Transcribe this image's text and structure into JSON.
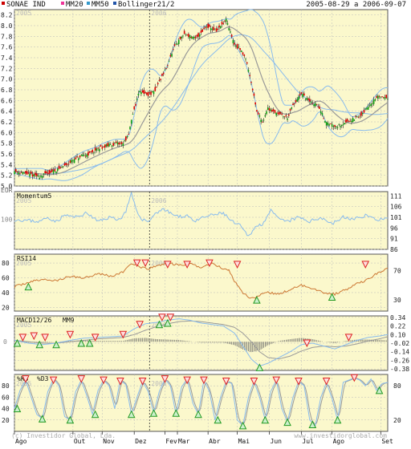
{
  "header": {
    "legend": [
      {
        "label": "SONAE IND",
        "color": "#cc0000"
      },
      {
        "label": "MM20",
        "color": "#ee3399"
      },
      {
        "label": "MM50",
        "color": "#3399cc"
      },
      {
        "label": "Bollinger21/2",
        "color": "#2255aa"
      }
    ],
    "date_range": "2005-08-29 a 2006-09-07"
  },
  "footer": {
    "copyright": "(c) Investidor Global, Lda.",
    "watermark": "www.investidorglobal.com"
  },
  "colors": {
    "panel_bg": "#fbf8cc",
    "grid": "#bbbbbb",
    "candle_up": "#10a010",
    "candle_down": "#dd0000",
    "ma_gray": "#999999",
    "ma_blue": "#88bbee",
    "rsi_line": "#cc7733",
    "buy_marker": "#229922",
    "sell_marker": "#dd2222",
    "cursor": "#333333"
  },
  "chart_data": [
    {
      "type": "candlestick",
      "title": "SONAE IND",
      "series_labels": [
        "SONAE IND",
        "MM20",
        "MM50",
        "Bollinger21/2"
      ],
      "ylim": [
        5.0,
        8.3
      ],
      "y_ticks": [
        "5.0",
        "5.2",
        "5.4",
        "5.6",
        "5.8",
        "6.0",
        "6.2",
        "6.4",
        "6.6",
        "6.8",
        "7.0",
        "7.2",
        "7.4",
        "7.6",
        "7.8",
        "8.0",
        "8.2"
      ],
      "y_axis_label": "EUR",
      "year_marks": [
        "2005",
        "2006"
      ],
      "close_anchors": [
        [
          0,
          5.28
        ],
        [
          10,
          5.22
        ],
        [
          18,
          5.18
        ],
        [
          25,
          5.25
        ],
        [
          32,
          5.32
        ],
        [
          40,
          5.45
        ],
        [
          48,
          5.55
        ],
        [
          55,
          5.62
        ],
        [
          62,
          5.72
        ],
        [
          70,
          5.78
        ],
        [
          78,
          5.8
        ],
        [
          82,
          5.95
        ],
        [
          85,
          6.35
        ],
        [
          90,
          6.8
        ],
        [
          95,
          6.7
        ],
        [
          100,
          6.75
        ],
        [
          108,
          7.15
        ],
        [
          115,
          7.6
        ],
        [
          122,
          7.85
        ],
        [
          130,
          7.75
        ],
        [
          138,
          8.0
        ],
        [
          145,
          7.9
        ],
        [
          152,
          8.1
        ],
        [
          158,
          7.65
        ],
        [
          162,
          7.55
        ],
        [
          166,
          7.4
        ],
        [
          170,
          6.95
        ],
        [
          174,
          6.4
        ],
        [
          178,
          6.2
        ],
        [
          182,
          6.45
        ],
        [
          190,
          6.35
        ],
        [
          196,
          6.28
        ],
        [
          200,
          6.5
        ],
        [
          206,
          6.72
        ],
        [
          212,
          6.58
        ],
        [
          218,
          6.5
        ],
        [
          224,
          6.18
        ],
        [
          232,
          6.12
        ],
        [
          240,
          6.22
        ],
        [
          248,
          6.3
        ],
        [
          256,
          6.55
        ],
        [
          262,
          6.68
        ],
        [
          268,
          6.65
        ]
      ]
    },
    {
      "type": "line",
      "title": "Momentum5",
      "ylim": [
        86,
        113
      ],
      "y_ticks": [
        "111",
        "106",
        "101",
        "96",
        "91",
        "86"
      ],
      "left_label": "100",
      "anchors": [
        [
          0,
          100
        ],
        [
          10,
          99.5
        ],
        [
          18,
          99
        ],
        [
          24,
          101
        ],
        [
          30,
          99
        ],
        [
          36,
          102
        ],
        [
          44,
          101
        ],
        [
          52,
          103
        ],
        [
          60,
          99
        ],
        [
          68,
          101
        ],
        [
          76,
          100
        ],
        [
          80,
          104
        ],
        [
          84,
          112
        ],
        [
          88,
          103
        ],
        [
          92,
          100
        ],
        [
          96,
          99
        ],
        [
          100,
          102
        ],
        [
          106,
          105
        ],
        [
          112,
          103
        ],
        [
          118,
          101
        ],
        [
          124,
          102
        ],
        [
          130,
          99
        ],
        [
          136,
          101
        ],
        [
          142,
          102
        ],
        [
          150,
          103
        ],
        [
          156,
          99
        ],
        [
          162,
          97
        ],
        [
          168,
          92
        ],
        [
          172,
          96
        ],
        [
          178,
          98
        ],
        [
          184,
          104
        ],
        [
          190,
          100
        ],
        [
          196,
          99
        ],
        [
          204,
          101
        ],
        [
          212,
          99
        ],
        [
          220,
          101
        ],
        [
          228,
          98
        ],
        [
          236,
          101
        ],
        [
          244,
          100
        ],
        [
          252,
          102
        ],
        [
          260,
          100
        ],
        [
          268,
          100
        ]
      ]
    },
    {
      "type": "line",
      "title": "RSI14",
      "ylim": [
        15,
        92
      ],
      "y_ticks_left": [
        "80",
        "60",
        "40",
        "20"
      ],
      "y_ticks_right": [
        "70",
        "30"
      ],
      "anchors": [
        [
          0,
          48
        ],
        [
          10,
          54
        ],
        [
          20,
          58
        ],
        [
          30,
          56
        ],
        [
          40,
          62
        ],
        [
          50,
          60
        ],
        [
          60,
          66
        ],
        [
          70,
          62
        ],
        [
          78,
          68
        ],
        [
          84,
          80
        ],
        [
          90,
          74
        ],
        [
          96,
          72
        ],
        [
          102,
          76
        ],
        [
          110,
          80
        ],
        [
          118,
          77
        ],
        [
          126,
          79
        ],
        [
          134,
          74
        ],
        [
          142,
          80
        ],
        [
          148,
          74
        ],
        [
          154,
          70
        ],
        [
          158,
          56
        ],
        [
          164,
          40
        ],
        [
          170,
          32
        ],
        [
          176,
          36
        ],
        [
          182,
          40
        ],
        [
          190,
          38
        ],
        [
          198,
          44
        ],
        [
          206,
          50
        ],
        [
          214,
          46
        ],
        [
          222,
          40
        ],
        [
          230,
          38
        ],
        [
          238,
          44
        ],
        [
          246,
          52
        ],
        [
          254,
          58
        ],
        [
          262,
          68
        ],
        [
          268,
          72
        ]
      ],
      "sell_markers": [
        [
          88,
          80
        ],
        [
          94,
          80
        ],
        [
          110,
          78
        ],
        [
          124,
          78
        ],
        [
          140,
          80
        ],
        [
          160,
          78
        ],
        [
          252,
          78
        ]
      ],
      "buy_markers": [
        [
          10,
          48
        ],
        [
          174,
          30
        ],
        [
          228,
          34
        ]
      ]
    },
    {
      "type": "line",
      "title": "MACD12/26",
      "series_labels": [
        "MACD12/26",
        "MM9"
      ],
      "ylim": [
        -0.4,
        0.36
      ],
      "y_ticks": [
        "0.34",
        "0.22",
        "0.10",
        "-0.02",
        "-0.14",
        "-0.26",
        "-0.38"
      ],
      "left_label": "0",
      "macd_anchors": [
        [
          0,
          0.02
        ],
        [
          10,
          -0.02
        ],
        [
          20,
          -0.04
        ],
        [
          30,
          -0.02
        ],
        [
          40,
          0.02
        ],
        [
          50,
          0.05
        ],
        [
          60,
          0.06
        ],
        [
          70,
          0.07
        ],
        [
          78,
          0.08
        ],
        [
          86,
          0.18
        ],
        [
          94,
          0.25
        ],
        [
          102,
          0.27
        ],
        [
          110,
          0.3
        ],
        [
          118,
          0.32
        ],
        [
          126,
          0.3
        ],
        [
          134,
          0.26
        ],
        [
          142,
          0.24
        ],
        [
          150,
          0.22
        ],
        [
          158,
          0.12
        ],
        [
          164,
          -0.06
        ],
        [
          170,
          -0.24
        ],
        [
          176,
          -0.34
        ],
        [
          182,
          -0.3
        ],
        [
          190,
          -0.22
        ],
        [
          198,
          -0.14
        ],
        [
          206,
          -0.04
        ],
        [
          214,
          -0.02
        ],
        [
          222,
          -0.06
        ],
        [
          230,
          -0.1
        ],
        [
          238,
          -0.04
        ],
        [
          246,
          0.02
        ],
        [
          254,
          0.06
        ],
        [
          262,
          0.08
        ],
        [
          268,
          0.1
        ]
      ],
      "signal_anchors": [
        [
          0,
          0.02
        ],
        [
          10,
          0.0
        ],
        [
          20,
          -0.02
        ],
        [
          30,
          -0.02
        ],
        [
          40,
          0.0
        ],
        [
          50,
          0.02
        ],
        [
          60,
          0.04
        ],
        [
          70,
          0.05
        ],
        [
          78,
          0.06
        ],
        [
          86,
          0.1
        ],
        [
          94,
          0.16
        ],
        [
          102,
          0.21
        ],
        [
          110,
          0.25
        ],
        [
          118,
          0.28
        ],
        [
          126,
          0.29
        ],
        [
          134,
          0.28
        ],
        [
          142,
          0.26
        ],
        [
          150,
          0.24
        ],
        [
          158,
          0.2
        ],
        [
          164,
          0.12
        ],
        [
          170,
          0.0
        ],
        [
          176,
          -0.14
        ],
        [
          182,
          -0.22
        ],
        [
          190,
          -0.24
        ],
        [
          198,
          -0.2
        ],
        [
          206,
          -0.13
        ],
        [
          214,
          -0.08
        ],
        [
          222,
          -0.06
        ],
        [
          230,
          -0.07
        ],
        [
          238,
          -0.06
        ],
        [
          246,
          -0.03
        ],
        [
          254,
          0.01
        ],
        [
          262,
          0.04
        ],
        [
          268,
          0.07
        ]
      ],
      "sell_markers": [
        [
          6,
          0.06
        ],
        [
          14,
          0.08
        ],
        [
          22,
          0.06
        ],
        [
          40,
          0.1
        ],
        [
          58,
          0.06
        ],
        [
          78,
          0.1
        ],
        [
          90,
          0.24
        ],
        [
          106,
          0.34
        ],
        [
          112,
          0.34
        ],
        [
          210,
          -0.02
        ],
        [
          240,
          0.06
        ]
      ],
      "buy_markers": [
        [
          2,
          -0.02
        ],
        [
          18,
          -0.04
        ],
        [
          30,
          -0.04
        ],
        [
          48,
          -0.02
        ],
        [
          54,
          -0.02
        ],
        [
          104,
          0.24
        ],
        [
          110,
          0.26
        ],
        [
          176,
          -0.36
        ]
      ]
    },
    {
      "type": "line",
      "title": "%K5",
      "series_labels": [
        "%K5",
        "%D3"
      ],
      "ylim": [
        0,
        100
      ],
      "y_ticks_left": [
        "80",
        "60",
        "40",
        "20"
      ],
      "y_ticks_right": [
        "80",
        "20"
      ],
      "k_anchors": [
        [
          0,
          40
        ],
        [
          4,
          72
        ],
        [
          8,
          90
        ],
        [
          12,
          60
        ],
        [
          16,
          30
        ],
        [
          20,
          22
        ],
        [
          24,
          70
        ],
        [
          28,
          92
        ],
        [
          32,
          80
        ],
        [
          36,
          26
        ],
        [
          40,
          20
        ],
        [
          44,
          70
        ],
        [
          48,
          90
        ],
        [
          52,
          62
        ],
        [
          56,
          30
        ],
        [
          60,
          72
        ],
        [
          64,
          90
        ],
        [
          68,
          80
        ],
        [
          72,
          40
        ],
        [
          76,
          90
        ],
        [
          80,
          82
        ],
        [
          84,
          30
        ],
        [
          88,
          60
        ],
        [
          92,
          88
        ],
        [
          96,
          70
        ],
        [
          100,
          32
        ],
        [
          104,
          70
        ],
        [
          108,
          92
        ],
        [
          112,
          80
        ],
        [
          116,
          30
        ],
        [
          120,
          78
        ],
        [
          124,
          92
        ],
        [
          128,
          50
        ],
        [
          132,
          30
        ],
        [
          136,
          90
        ],
        [
          140,
          70
        ],
        [
          144,
          20
        ],
        [
          148,
          60
        ],
        [
          152,
          88
        ],
        [
          156,
          84
        ],
        [
          160,
          20
        ],
        [
          164,
          10
        ],
        [
          168,
          60
        ],
        [
          172,
          88
        ],
        [
          176,
          60
        ],
        [
          180,
          20
        ],
        [
          184,
          70
        ],
        [
          188,
          90
        ],
        [
          192,
          40
        ],
        [
          196,
          16
        ],
        [
          200,
          60
        ],
        [
          204,
          88
        ],
        [
          208,
          80
        ],
        [
          212,
          20
        ],
        [
          216,
          10
        ],
        [
          220,
          60
        ],
        [
          224,
          86
        ],
        [
          228,
          58
        ],
        [
          232,
          20
        ],
        [
          236,
          86
        ],
        [
          240,
          90
        ],
        [
          244,
          94
        ],
        [
          248,
          90
        ],
        [
          252,
          80
        ],
        [
          256,
          92
        ],
        [
          260,
          72
        ],
        [
          264,
          84
        ],
        [
          268,
          86
        ]
      ],
      "sell_markers": [
        [
          8,
          92
        ],
        [
          28,
          90
        ],
        [
          48,
          92
        ],
        [
          64,
          90
        ],
        [
          76,
          88
        ],
        [
          92,
          88
        ],
        [
          108,
          92
        ],
        [
          124,
          90
        ],
        [
          136,
          90
        ],
        [
          152,
          88
        ],
        [
          172,
          88
        ],
        [
          188,
          90
        ],
        [
          204,
          88
        ],
        [
          224,
          88
        ],
        [
          244,
          94
        ]
      ],
      "buy_markers": [
        [
          2,
          40
        ],
        [
          20,
          22
        ],
        [
          40,
          20
        ],
        [
          58,
          30
        ],
        [
          84,
          30
        ],
        [
          100,
          32
        ],
        [
          116,
          32
        ],
        [
          132,
          30
        ],
        [
          146,
          20
        ],
        [
          164,
          10
        ],
        [
          180,
          20
        ],
        [
          196,
          16
        ],
        [
          214,
          12
        ],
        [
          232,
          20
        ],
        [
          262,
          72
        ]
      ]
    }
  ],
  "x_axis": {
    "months": [
      {
        "label": "Ago",
        "pos": 0
      },
      {
        "label": "Out",
        "pos": 42
      },
      {
        "label": "Nov",
        "pos": 63
      },
      {
        "label": "Dez",
        "pos": 86
      },
      {
        "label": "Fev",
        "pos": 108
      },
      {
        "label": "Mar",
        "pos": 117
      },
      {
        "label": "Abr",
        "pos": 139
      },
      {
        "label": "Mai",
        "pos": 160
      },
      {
        "label": "Jun",
        "pos": 183
      },
      {
        "label": "Jul",
        "pos": 206
      },
      {
        "label": "Ago",
        "pos": 228
      },
      {
        "label": "Set",
        "pos": 263
      }
    ],
    "cursor_pos": 97,
    "year_mark_pos": [
      0,
      97
    ]
  }
}
